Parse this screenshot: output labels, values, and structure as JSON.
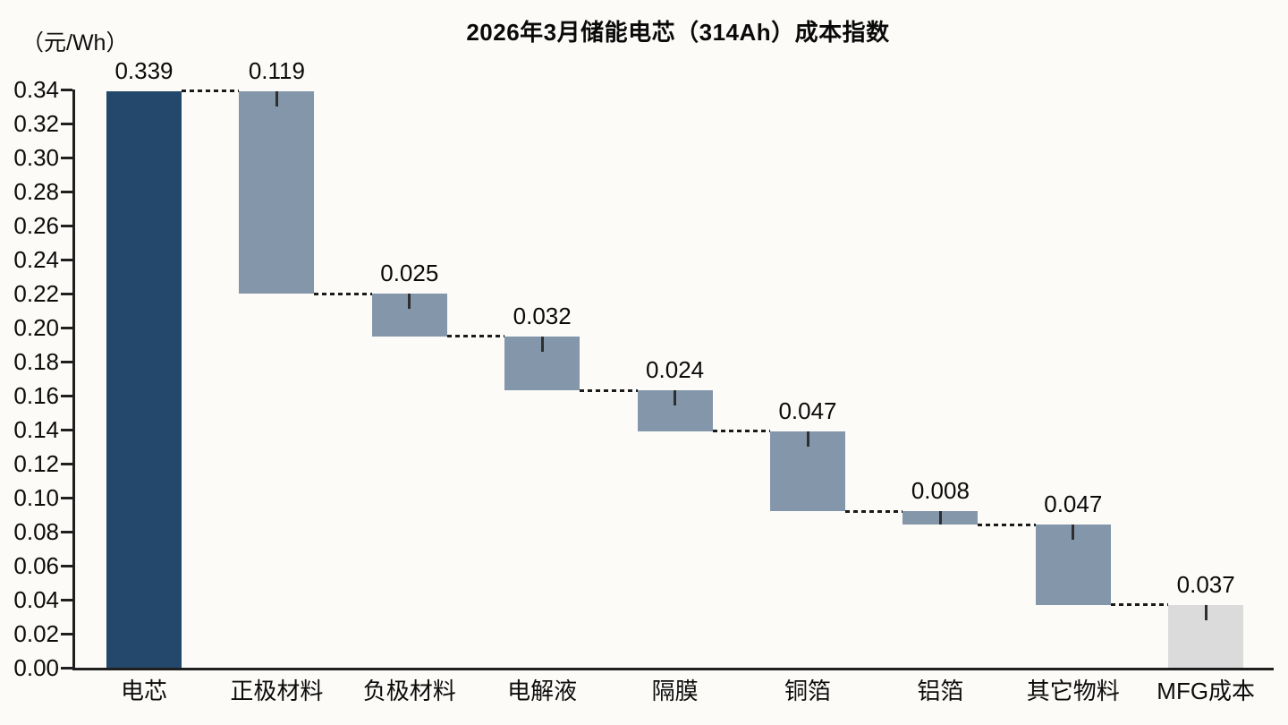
{
  "page": {
    "background_color": "#FCFBF8"
  },
  "chart_data": {
    "type": "bar",
    "subtype": "waterfall",
    "title": "2026年3月储能电芯（314Ah）成本指数",
    "unit_label": "（元/Wh）",
    "categories": [
      "电芯",
      "正极材料",
      "负极材料",
      "电解液",
      "隔膜",
      "铜箔",
      "铝箔",
      "其它物料",
      "MFG成本"
    ],
    "values": [
      0.339,
      0.119,
      0.025,
      0.032,
      0.024,
      0.047,
      0.008,
      0.047,
      0.037
    ],
    "value_labels": [
      "0.339",
      "0.119",
      "0.025",
      "0.032",
      "0.024",
      "0.047",
      "0.008",
      "0.047",
      "0.037"
    ],
    "bar_ranges": [
      [
        0,
        0.339
      ],
      [
        0.22,
        0.339
      ],
      [
        0.195,
        0.22
      ],
      [
        0.163,
        0.195
      ],
      [
        0.139,
        0.163
      ],
      [
        0.092,
        0.139
      ],
      [
        0.084,
        0.092
      ],
      [
        0.037,
        0.084
      ],
      [
        0,
        0.037
      ]
    ],
    "bar_colors": [
      "#24486B",
      "#8497AA",
      "#8497AA",
      "#8497AA",
      "#8497AA",
      "#8497AA",
      "#8497AA",
      "#8497AA",
      "#DBDBDB"
    ],
    "whiskers": [
      false,
      true,
      true,
      true,
      true,
      true,
      true,
      true,
      true
    ],
    "y_axis": {
      "min": 0,
      "max": 0.34,
      "step": 0.02,
      "tick_labels": [
        "0.00",
        "0.02",
        "0.04",
        "0.06",
        "0.08",
        "0.10",
        "0.12",
        "0.14",
        "0.16",
        "0.18",
        "0.20",
        "0.22",
        "0.24",
        "0.26",
        "0.28",
        "0.30",
        "0.32",
        "0.34"
      ]
    },
    "grid": false,
    "legend": null,
    "colors": {
      "axis": "#1F1F1F",
      "connector": "#1A1A1A",
      "whisker": "#2E2E2E",
      "total_bar": "#24486B",
      "step_bar": "#8497AA",
      "final_bar": "#DBDBDB"
    }
  }
}
